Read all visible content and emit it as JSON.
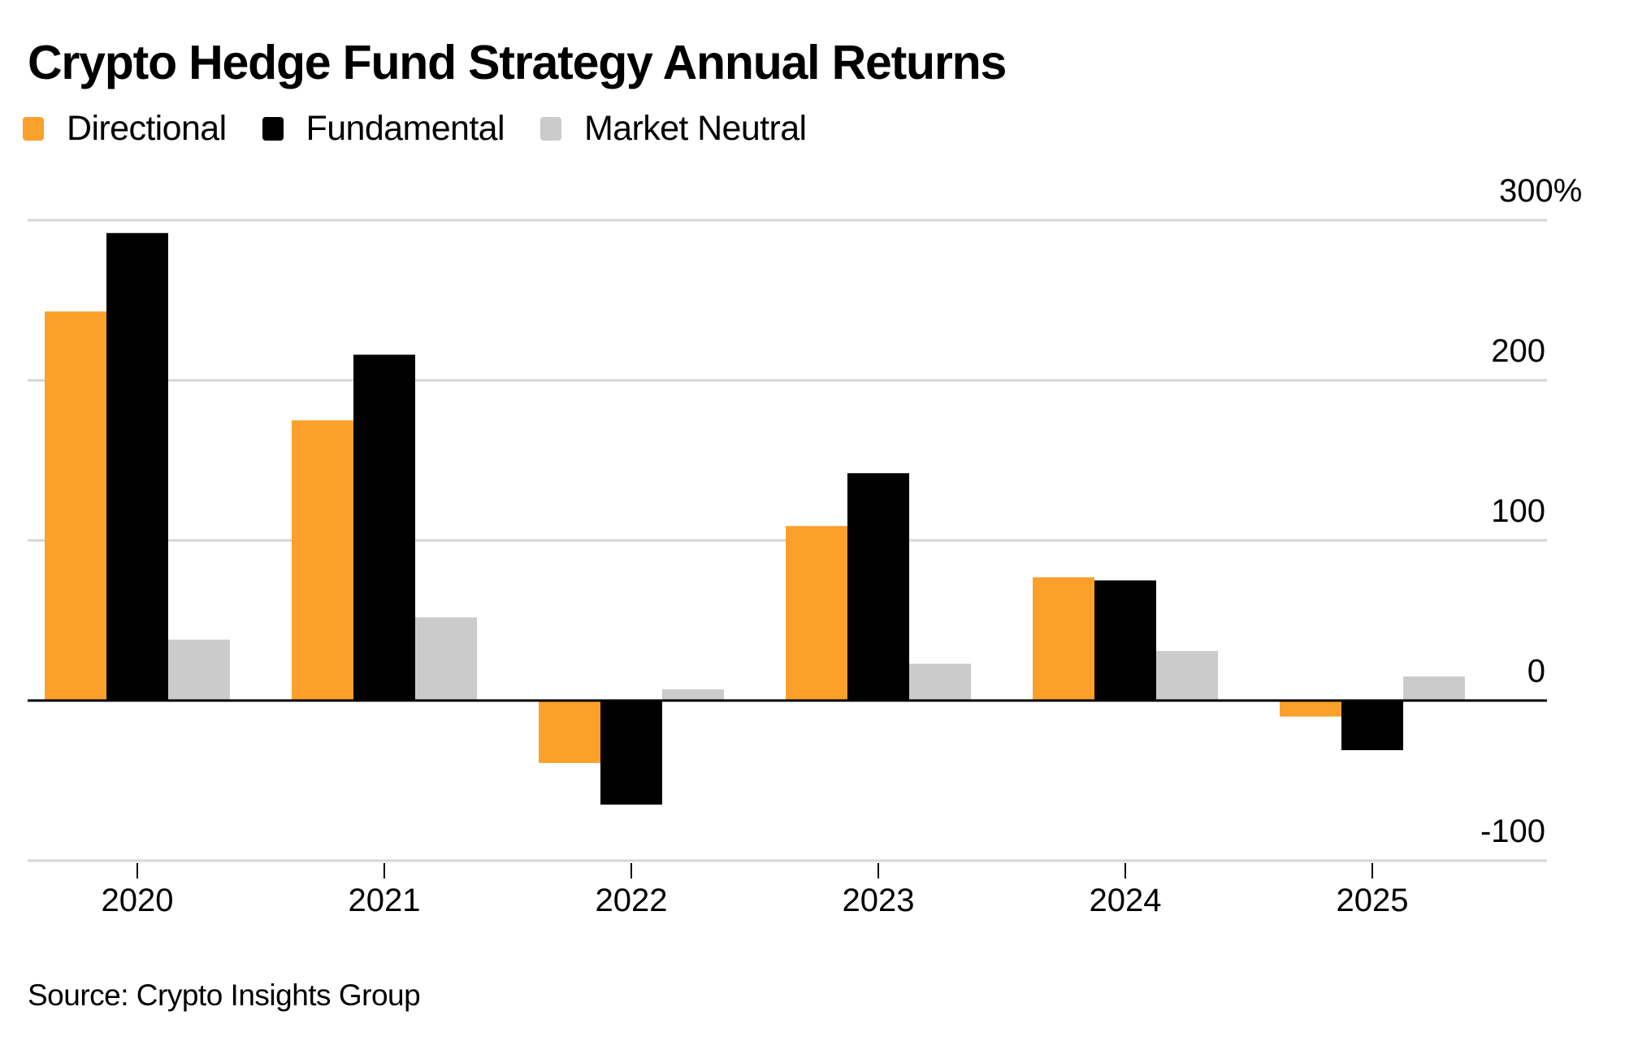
{
  "title": "Crypto Hedge Fund Strategy Annual Returns",
  "source": "Source: Crypto Insights Group",
  "legend": [
    {
      "name": "Directional",
      "color": "#FBA02A"
    },
    {
      "name": "Fundamental",
      "color": "#000000"
    },
    {
      "name": "Market Neutral",
      "color": "#CBCBCB"
    }
  ],
  "chart_data": {
    "type": "bar",
    "title": "Crypto Hedge Fund Strategy Annual Returns",
    "xlabel": "",
    "ylabel": "",
    "categories": [
      "2020",
      "2021",
      "2022",
      "2023",
      "2024",
      "2025"
    ],
    "series": [
      {
        "name": "Directional",
        "color": "#FBA02A",
        "values": [
          243,
          175,
          -39,
          109,
          77,
          -10
        ]
      },
      {
        "name": "Fundamental",
        "color": "#000000",
        "values": [
          292,
          216,
          -65,
          142,
          75,
          -31
        ]
      },
      {
        "name": "Market Neutral",
        "color": "#CBCBCB",
        "values": [
          38,
          52,
          7,
          23,
          31,
          15
        ]
      }
    ],
    "ylim": [
      -100,
      300
    ],
    "yticks": [
      300,
      200,
      100,
      0,
      -100
    ],
    "ytick_labels": [
      "300%",
      "200",
      "100",
      "0",
      "-100"
    ],
    "y_axis_position": "right",
    "grid": true,
    "legend_position": "top-left",
    "unit": "%"
  }
}
